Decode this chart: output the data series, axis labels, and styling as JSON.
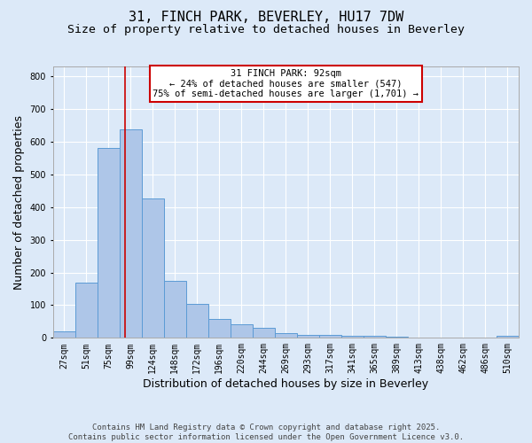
{
  "title": "31, FINCH PARK, BEVERLEY, HU17 7DW",
  "subtitle": "Size of property relative to detached houses in Beverley",
  "xlabel": "Distribution of detached houses by size in Beverley",
  "ylabel": "Number of detached properties",
  "categories": [
    "27sqm",
    "51sqm",
    "75sqm",
    "99sqm",
    "124sqm",
    "148sqm",
    "172sqm",
    "196sqm",
    "220sqm",
    "244sqm",
    "269sqm",
    "293sqm",
    "317sqm",
    "341sqm",
    "365sqm",
    "389sqm",
    "413sqm",
    "438sqm",
    "462sqm",
    "486sqm",
    "510sqm"
  ],
  "values": [
    20,
    168,
    582,
    638,
    425,
    175,
    105,
    57,
    42,
    32,
    15,
    10,
    10,
    7,
    5,
    3,
    2,
    0,
    0,
    0,
    6
  ],
  "bar_color": "#aec6e8",
  "bar_edge_color": "#5b9bd5",
  "background_color": "#dce9f8",
  "vline_x": 2.75,
  "vline_color": "#cc0000",
  "annotation_text": "31 FINCH PARK: 92sqm\n← 24% of detached houses are smaller (547)\n75% of semi-detached houses are larger (1,701) →",
  "annotation_box_color": "#ffffff",
  "annotation_box_edgecolor": "#cc0000",
  "ylim": [
    0,
    830
  ],
  "yticks": [
    0,
    100,
    200,
    300,
    400,
    500,
    600,
    700,
    800
  ],
  "footer": "Contains HM Land Registry data © Crown copyright and database right 2025.\nContains public sector information licensed under the Open Government Licence v3.0.",
  "title_fontsize": 11,
  "subtitle_fontsize": 9.5,
  "axis_label_fontsize": 9,
  "tick_fontsize": 7,
  "annotation_fontsize": 7.5,
  "footer_fontsize": 6.5
}
